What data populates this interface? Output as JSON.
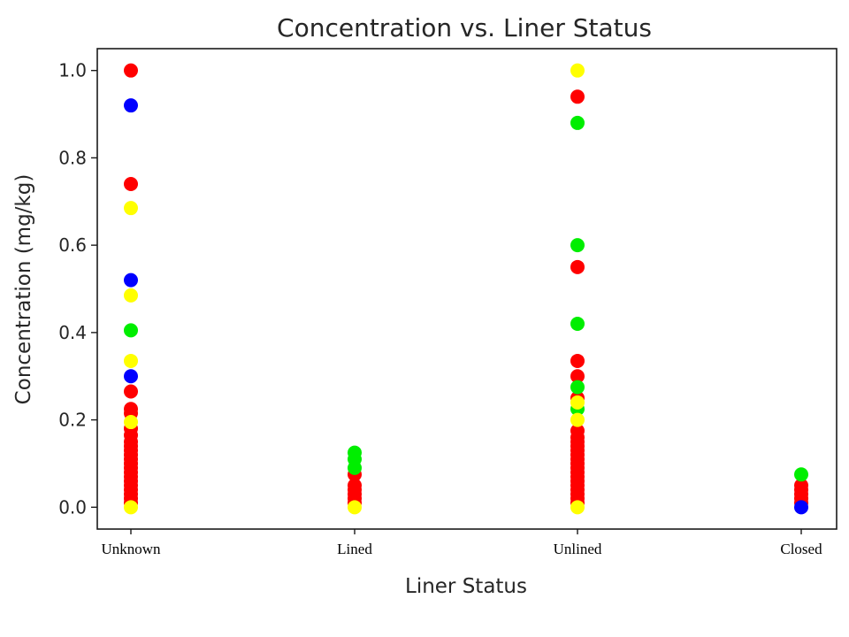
{
  "chart_data": {
    "type": "scatter",
    "title": "Concentration vs. Liner Status",
    "xlabel": "Liner Status",
    "ylabel": "Concentration (mg/kg)",
    "categories": [
      "Unknown",
      "Lined",
      "Unlined",
      "Closed"
    ],
    "ylim": [
      -0.05,
      1.05
    ],
    "yticks": [
      "0.0",
      "0.2",
      "0.4",
      "0.6",
      "0.8",
      "1.0"
    ],
    "grid": false,
    "colors": {
      "red": "#ff0000",
      "green": "#00ee00",
      "blue": "#0000ff",
      "yellow": "#ffff00"
    },
    "series": [
      {
        "color": "red",
        "points": [
          [
            "Unknown",
            1.0
          ],
          [
            "Unknown",
            0.74
          ],
          [
            "Unknown",
            0.265
          ],
          [
            "Unknown",
            0.225
          ],
          [
            "Unknown",
            0.215
          ],
          [
            "Unknown",
            0.18
          ],
          [
            "Unknown",
            0.165
          ],
          [
            "Unknown",
            0.15
          ],
          [
            "Unknown",
            0.14
          ],
          [
            "Unknown",
            0.13
          ],
          [
            "Unknown",
            0.12
          ],
          [
            "Unknown",
            0.11
          ],
          [
            "Unknown",
            0.1
          ],
          [
            "Unknown",
            0.09
          ],
          [
            "Unknown",
            0.08
          ],
          [
            "Unknown",
            0.07
          ],
          [
            "Unknown",
            0.06
          ],
          [
            "Unknown",
            0.05
          ],
          [
            "Unknown",
            0.04
          ],
          [
            "Unknown",
            0.03
          ],
          [
            "Unknown",
            0.02
          ],
          [
            "Unknown",
            0.01
          ],
          [
            "Lined",
            0.075
          ],
          [
            "Lined",
            0.05
          ],
          [
            "Lined",
            0.04
          ],
          [
            "Lined",
            0.03
          ],
          [
            "Lined",
            0.02
          ],
          [
            "Lined",
            0.01
          ],
          [
            "Unlined",
            0.94
          ],
          [
            "Unlined",
            0.55
          ],
          [
            "Unlined",
            0.335
          ],
          [
            "Unlined",
            0.3
          ],
          [
            "Unlined",
            0.25
          ],
          [
            "Unlined",
            0.175
          ],
          [
            "Unlined",
            0.16
          ],
          [
            "Unlined",
            0.15
          ],
          [
            "Unlined",
            0.14
          ],
          [
            "Unlined",
            0.13
          ],
          [
            "Unlined",
            0.12
          ],
          [
            "Unlined",
            0.11
          ],
          [
            "Unlined",
            0.1
          ],
          [
            "Unlined",
            0.09
          ],
          [
            "Unlined",
            0.08
          ],
          [
            "Unlined",
            0.07
          ],
          [
            "Unlined",
            0.06
          ],
          [
            "Unlined",
            0.05
          ],
          [
            "Unlined",
            0.04
          ],
          [
            "Unlined",
            0.03
          ],
          [
            "Unlined",
            0.02
          ],
          [
            "Unlined",
            0.01
          ],
          [
            "Closed",
            0.05
          ],
          [
            "Closed",
            0.04
          ],
          [
            "Closed",
            0.03
          ],
          [
            "Closed",
            0.02
          ],
          [
            "Closed",
            0.01
          ]
        ]
      },
      {
        "color": "green",
        "points": [
          [
            "Unknown",
            0.405
          ],
          [
            "Lined",
            0.125
          ],
          [
            "Lined",
            0.11
          ],
          [
            "Lined",
            0.09
          ],
          [
            "Unlined",
            0.88
          ],
          [
            "Unlined",
            0.6
          ],
          [
            "Unlined",
            0.42
          ],
          [
            "Unlined",
            0.275
          ],
          [
            "Unlined",
            0.225
          ],
          [
            "Closed",
            0.075
          ]
        ]
      },
      {
        "color": "blue",
        "points": [
          [
            "Unknown",
            0.92
          ],
          [
            "Unknown",
            0.52
          ],
          [
            "Unknown",
            0.3
          ],
          [
            "Closed",
            0.0
          ]
        ]
      },
      {
        "color": "yellow",
        "points": [
          [
            "Unknown",
            0.685
          ],
          [
            "Unknown",
            0.485
          ],
          [
            "Unknown",
            0.335
          ],
          [
            "Unknown",
            0.195
          ],
          [
            "Unknown",
            0.0
          ],
          [
            "Lined",
            0.0
          ],
          [
            "Unlined",
            1.0
          ],
          [
            "Unlined",
            0.24
          ],
          [
            "Unlined",
            0.2
          ],
          [
            "Unlined",
            0.0
          ]
        ]
      }
    ]
  }
}
